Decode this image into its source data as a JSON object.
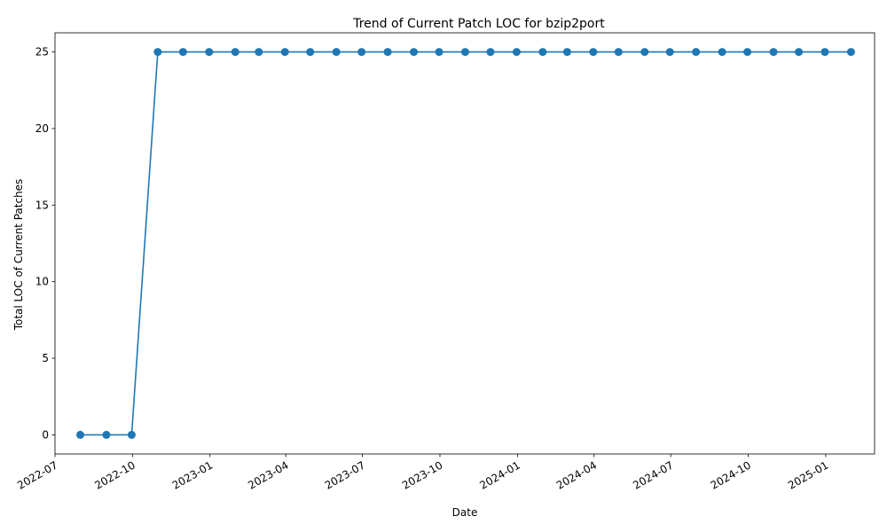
{
  "chart_data": {
    "type": "line",
    "title": "Trend of Current Patch LOC for bzip2port",
    "xlabel": "Date",
    "ylabel": "Total LOC of Current Patches",
    "x_axis_type": "date",
    "xlim": [
      "2022-07-01",
      "2025-02-28"
    ],
    "ylim": [
      -1.25,
      26.25
    ],
    "x_ticks": [
      "2022-07",
      "2022-10",
      "2023-01",
      "2023-04",
      "2023-07",
      "2023-10",
      "2024-01",
      "2024-04",
      "2024-07",
      "2024-10",
      "2025-01"
    ],
    "y_ticks": [
      0,
      5,
      10,
      15,
      20,
      25
    ],
    "grid": false,
    "legend": "none",
    "line_color": "#1f77b4",
    "marker": "circle",
    "series": [
      {
        "x": [
          "2022-07-31",
          "2022-08-31",
          "2022-09-30",
          "2022-10-31",
          "2022-11-30",
          "2022-12-31",
          "2023-01-31",
          "2023-02-28",
          "2023-03-31",
          "2023-04-30",
          "2023-05-31",
          "2023-06-30",
          "2023-07-31",
          "2023-08-31",
          "2023-09-30",
          "2023-10-31",
          "2023-11-30",
          "2023-12-31",
          "2024-01-31",
          "2024-02-29",
          "2024-03-31",
          "2024-04-30",
          "2024-05-31",
          "2024-06-30",
          "2024-07-31",
          "2024-08-31",
          "2024-09-30",
          "2024-10-31",
          "2024-11-30",
          "2024-12-31",
          "2025-01-31"
        ],
        "values": [
          0,
          0,
          0,
          25,
          25,
          25,
          25,
          25,
          25,
          25,
          25,
          25,
          25,
          25,
          25,
          25,
          25,
          25,
          25,
          25,
          25,
          25,
          25,
          25,
          25,
          25,
          25,
          25,
          25,
          25,
          25
        ]
      }
    ]
  }
}
